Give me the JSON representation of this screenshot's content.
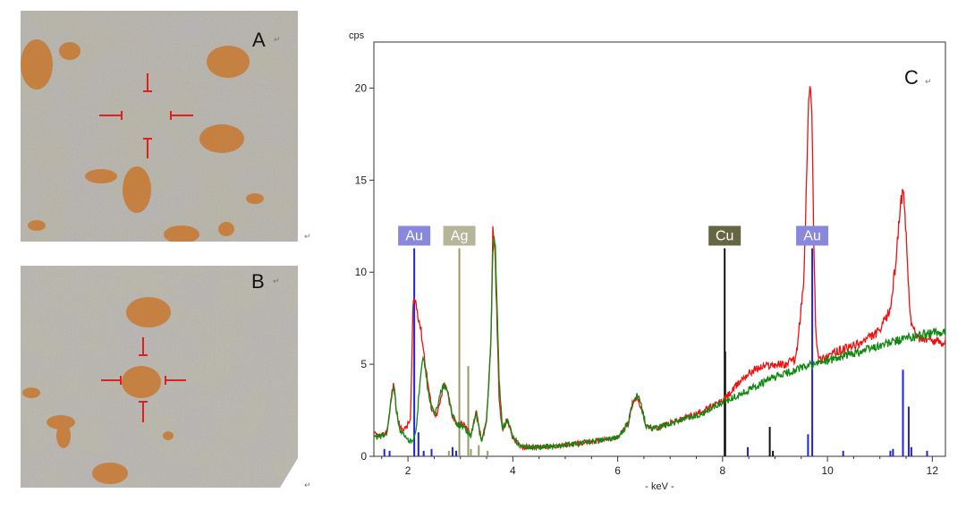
{
  "panel_a": {
    "letter": "A"
  },
  "panel_b": {
    "letter": "B"
  },
  "paragraph_mark": "↵",
  "colors": {
    "series_red": "#ee1111",
    "series_green": "#118811",
    "au_line": "#2222dd",
    "ag_line": "#999966",
    "cu_line": "#111111",
    "au_label_bg": "#8888dd",
    "ag_label_bg": "#b5b59a",
    "cu_label_bg": "#666644",
    "crosshair": "#e02020"
  },
  "chart_data": {
    "type": "line",
    "title": "",
    "panel_letter": "C",
    "ylabel": "cps",
    "xlabel": "- keV -",
    "xlim": [
      1.35,
      12.25
    ],
    "ylim": [
      0,
      22.5
    ],
    "xticks": [
      2,
      4,
      6,
      8,
      10,
      12
    ],
    "yticks": [
      0,
      5,
      10,
      15,
      20
    ],
    "grid": false,
    "series": [
      {
        "color": "#ee1111",
        "x": [
          1.35,
          1.5,
          1.6,
          1.7,
          1.73,
          1.78,
          1.85,
          1.95,
          2.05,
          2.1,
          2.15,
          2.25,
          2.35,
          2.45,
          2.55,
          2.62,
          2.68,
          2.75,
          2.85,
          2.95,
          3.05,
          3.2,
          3.3,
          3.4,
          3.5,
          3.58,
          3.62,
          3.66,
          3.7,
          3.74,
          3.8,
          3.9,
          4.0,
          4.1,
          4.2,
          4.5,
          5.0,
          5.5,
          6.0,
          6.2,
          6.3,
          6.38,
          6.45,
          6.55,
          6.7,
          7.0,
          7.5,
          8.0,
          8.2,
          8.4,
          8.6,
          8.8,
          9.0,
          9.2,
          9.4,
          9.55,
          9.62,
          9.66,
          9.7,
          9.74,
          9.78,
          9.85,
          9.95,
          10.2,
          10.6,
          11.0,
          11.2,
          11.3,
          11.4,
          11.45,
          11.5,
          11.55,
          11.6,
          11.7,
          11.8,
          12.0,
          12.25
        ],
        "y": [
          1.2,
          1.1,
          1.3,
          3.6,
          3.9,
          2.5,
          1.5,
          1.5,
          2.0,
          8.5,
          8.4,
          6.8,
          4.6,
          2.6,
          2.2,
          3.0,
          3.9,
          3.6,
          2.2,
          1.7,
          1.8,
          1.2,
          2.4,
          0.9,
          2.0,
          6.0,
          12.6,
          11.0,
          7.0,
          3.0,
          1.4,
          2.0,
          1.0,
          0.7,
          0.5,
          0.5,
          0.6,
          0.8,
          1.0,
          1.8,
          3.1,
          3.2,
          2.6,
          1.6,
          1.5,
          1.8,
          2.3,
          3.0,
          3.6,
          4.3,
          4.7,
          4.9,
          5.0,
          5.0,
          5.3,
          9.5,
          17.0,
          20.5,
          19.0,
          12.0,
          6.5,
          5.2,
          5.4,
          5.7,
          6.1,
          6.8,
          8.0,
          10.5,
          14.0,
          14.2,
          12.0,
          9.0,
          7.2,
          6.5,
          6.4,
          6.3,
          6.2
        ]
      },
      {
        "color": "#118811",
        "x": [
          1.35,
          1.5,
          1.6,
          1.7,
          1.73,
          1.78,
          1.85,
          1.95,
          2.05,
          2.15,
          2.25,
          2.3,
          2.4,
          2.5,
          2.6,
          2.68,
          2.75,
          2.85,
          2.95,
          3.05,
          3.2,
          3.3,
          3.4,
          3.5,
          3.58,
          3.62,
          3.66,
          3.7,
          3.74,
          3.8,
          3.9,
          4.0,
          4.1,
          4.2,
          4.5,
          5.0,
          5.5,
          6.0,
          6.2,
          6.3,
          6.38,
          6.45,
          6.55,
          6.7,
          7.0,
          7.5,
          8.0,
          8.5,
          9.0,
          9.5,
          10.0,
          10.5,
          11.0,
          11.5,
          12.0,
          12.25
        ],
        "y": [
          1.0,
          1.1,
          1.3,
          3.6,
          3.9,
          2.5,
          1.4,
          1.0,
          0.8,
          1.2,
          4.8,
          5.3,
          3.2,
          2.2,
          3.2,
          3.9,
          3.5,
          2.2,
          1.7,
          1.6,
          1.1,
          2.3,
          0.8,
          1.8,
          6.0,
          11.5,
          11.8,
          8.0,
          4.0,
          1.5,
          2.0,
          1.0,
          0.7,
          0.5,
          0.5,
          0.6,
          0.8,
          1.0,
          1.8,
          3.1,
          3.3,
          2.7,
          1.6,
          1.5,
          1.8,
          2.2,
          2.9,
          3.6,
          4.3,
          4.8,
          5.2,
          5.6,
          6.0,
          6.4,
          6.7,
          6.8
        ]
      }
    ],
    "element_markers": [
      {
        "label": "Au",
        "x": 2.12,
        "height": 11.3,
        "color": "#2222dd",
        "label_bg": "#8888dd"
      },
      {
        "label": "Ag",
        "x": 2.98,
        "height": 11.3,
        "color": "#999966",
        "label_bg": "#b5b59a"
      },
      {
        "label": "Cu",
        "x": 8.04,
        "height": 11.3,
        "color": "#111111",
        "label_bg": "#666644"
      },
      {
        "label": "Au",
        "x": 9.71,
        "height": 11.3,
        "color": "#2222dd",
        "label_bg": "#8888dd"
      }
    ],
    "minor_lines": [
      {
        "x": 1.55,
        "h": 0.4,
        "color": "#2222dd"
      },
      {
        "x": 1.65,
        "h": 0.3,
        "color": "#2222dd"
      },
      {
        "x": 2.2,
        "h": 1.3,
        "color": "#2222dd"
      },
      {
        "x": 2.3,
        "h": 0.3,
        "color": "#2222dd"
      },
      {
        "x": 2.45,
        "h": 0.4,
        "color": "#2222dd"
      },
      {
        "x": 2.78,
        "h": 0.3,
        "color": "#999966"
      },
      {
        "x": 2.85,
        "h": 0.5,
        "color": "#2222dd"
      },
      {
        "x": 2.92,
        "h": 0.3,
        "color": "#2222dd"
      },
      {
        "x": 3.15,
        "h": 4.9,
        "color": "#999966"
      },
      {
        "x": 3.2,
        "h": 0.4,
        "color": "#999966"
      },
      {
        "x": 3.35,
        "h": 0.6,
        "color": "#999966"
      },
      {
        "x": 3.52,
        "h": 0.3,
        "color": "#999966"
      },
      {
        "x": 8.05,
        "h": 5.7,
        "color": "#111111"
      },
      {
        "x": 8.48,
        "h": 0.5,
        "color": "#2222dd"
      },
      {
        "x": 8.9,
        "h": 1.6,
        "color": "#111111"
      },
      {
        "x": 8.96,
        "h": 0.3,
        "color": "#111111"
      },
      {
        "x": 9.63,
        "h": 1.2,
        "color": "#2222dd"
      },
      {
        "x": 10.3,
        "h": 0.3,
        "color": "#2222dd"
      },
      {
        "x": 11.2,
        "h": 0.3,
        "color": "#2222dd"
      },
      {
        "x": 11.25,
        "h": 0.4,
        "color": "#2222dd"
      },
      {
        "x": 11.44,
        "h": 4.7,
        "color": "#2222dd"
      },
      {
        "x": 11.55,
        "h": 2.7,
        "color": "#2222dd"
      },
      {
        "x": 11.6,
        "h": 0.5,
        "color": "#2222dd"
      },
      {
        "x": 11.9,
        "h": 0.3,
        "color": "#2222dd"
      }
    ]
  }
}
